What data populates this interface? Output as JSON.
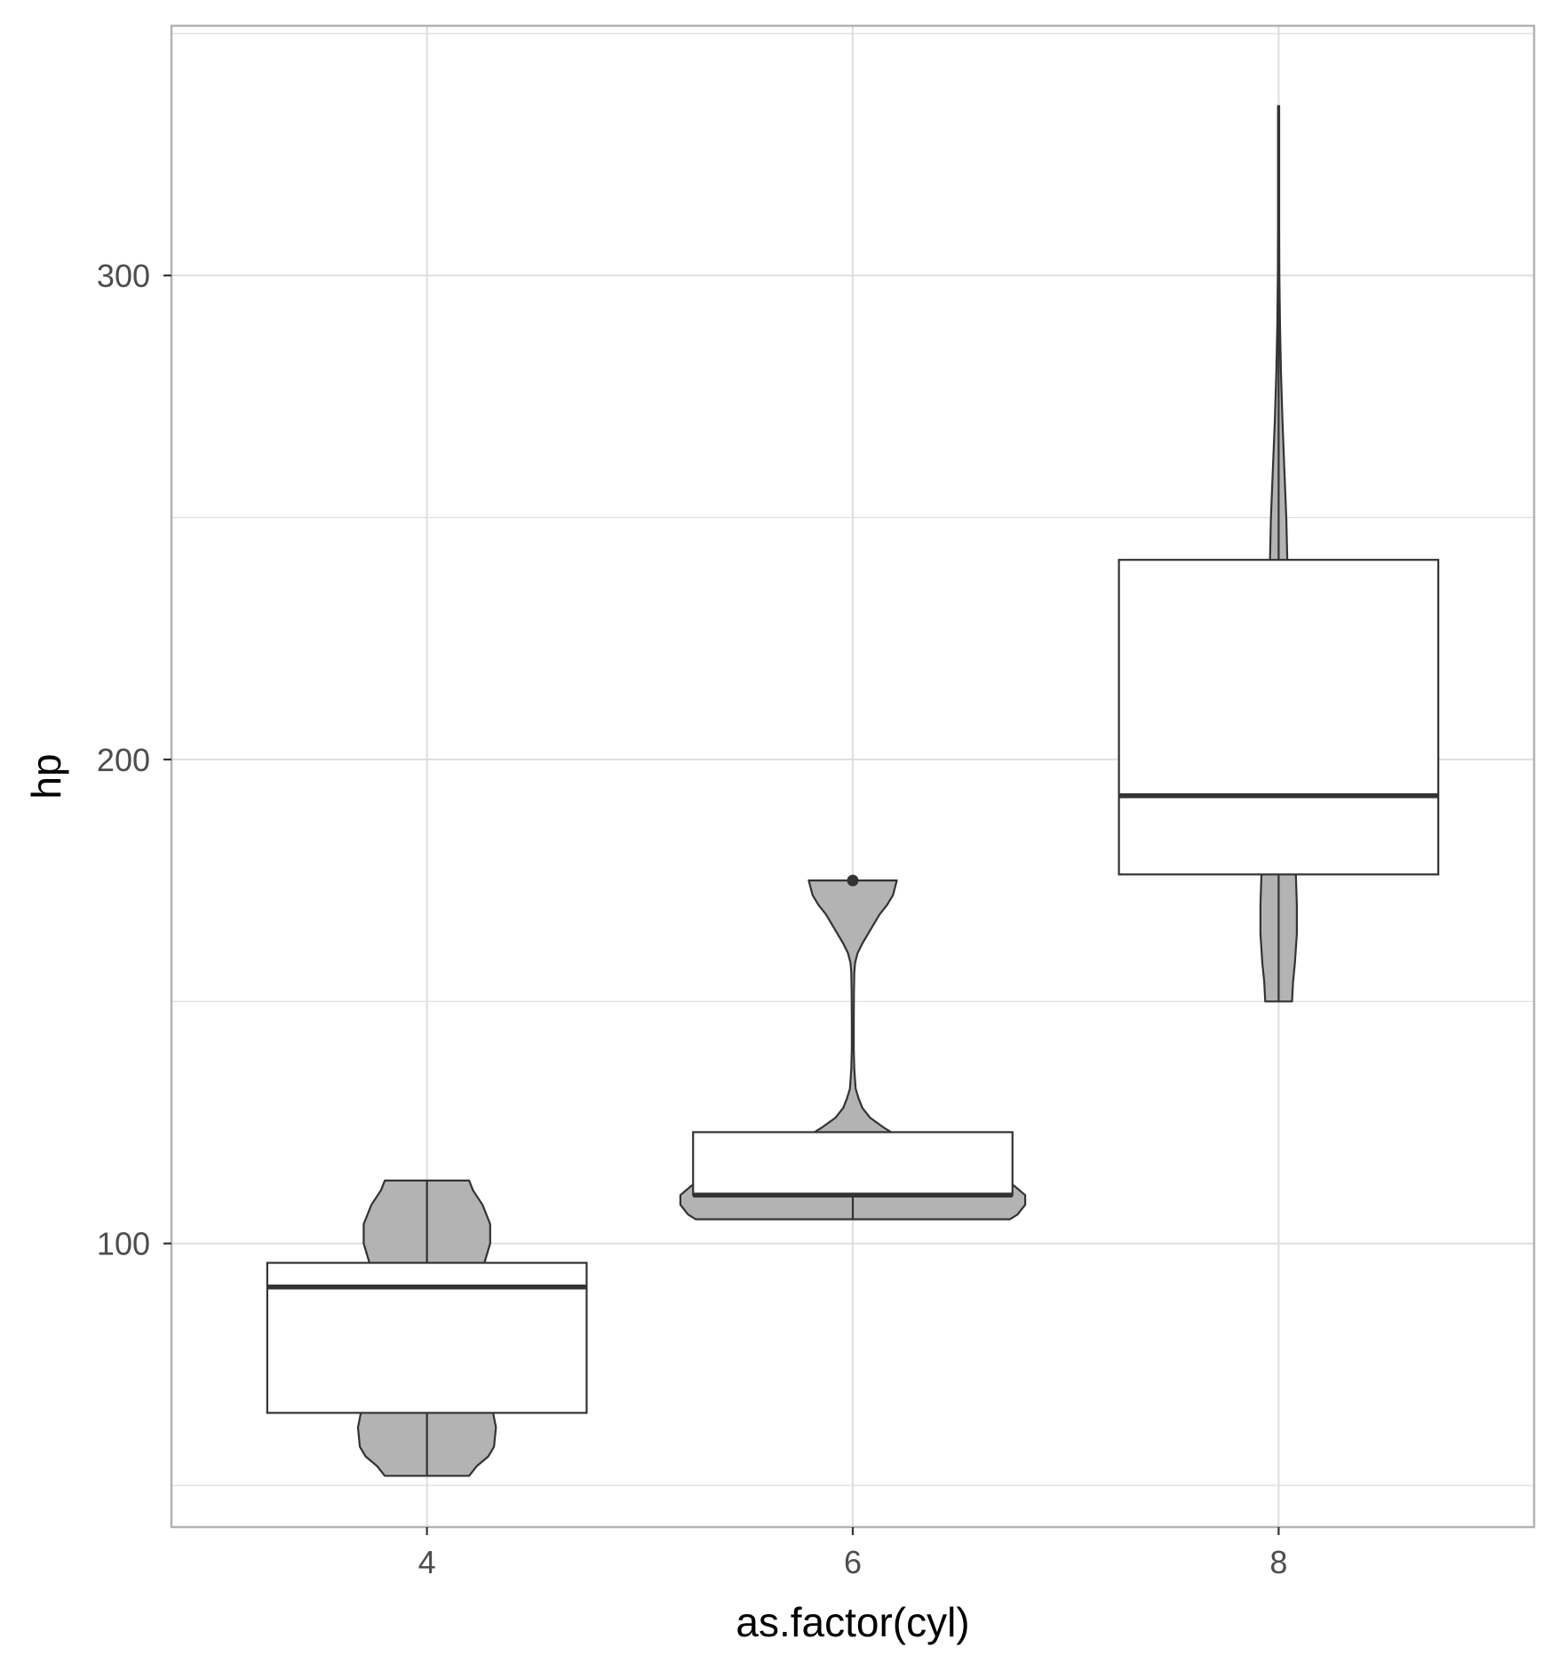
{
  "chart_data": {
    "type": "violin-boxplot",
    "xlabel": "as.factor(cyl)",
    "ylabel": "hp",
    "categories": [
      "4",
      "6",
      "8"
    ],
    "ylim": [
      41.4,
      351.6
    ],
    "y_ticks": [
      100,
      200,
      300
    ],
    "grid": true,
    "colors": {
      "violin_fill": "#b3b3b3",
      "box_fill": "#ffffff",
      "outline": "#333333",
      "panel_border": "#b3b3b3",
      "grid": "#dedede"
    },
    "violins": [
      {
        "category": "4",
        "min": 52,
        "max": 113,
        "profile": [
          [
            52,
            0.22
          ],
          [
            54,
            0.26
          ],
          [
            56,
            0.32
          ],
          [
            58,
            0.35
          ],
          [
            62,
            0.36
          ],
          [
            66,
            0.34
          ],
          [
            72,
            0.3
          ],
          [
            78,
            0.27
          ],
          [
            84,
            0.25
          ],
          [
            88,
            0.24
          ],
          [
            92,
            0.25
          ],
          [
            96,
            0.3
          ],
          [
            100,
            0.33
          ],
          [
            104,
            0.33
          ],
          [
            108,
            0.29
          ],
          [
            111,
            0.24
          ],
          [
            113,
            0.22
          ]
        ]
      },
      {
        "category": "6",
        "min": 105,
        "max": 175,
        "profile": [
          [
            105,
            0.82
          ],
          [
            106,
            0.86
          ],
          [
            108,
            0.9
          ],
          [
            110,
            0.9
          ],
          [
            112,
            0.84
          ],
          [
            114,
            0.7
          ],
          [
            116,
            0.56
          ],
          [
            118,
            0.43
          ],
          [
            120,
            0.32
          ],
          [
            122,
            0.24
          ],
          [
            124,
            0.16
          ],
          [
            126,
            0.09
          ],
          [
            128,
            0.05
          ],
          [
            130,
            0.03
          ],
          [
            132,
            0.015
          ],
          [
            136,
            0.008
          ],
          [
            140,
            0.005
          ],
          [
            146,
            0.005
          ],
          [
            152,
            0.006
          ],
          [
            156,
            0.008
          ],
          [
            158,
            0.012
          ],
          [
            160,
            0.025
          ],
          [
            162,
            0.05
          ],
          [
            164,
            0.08
          ],
          [
            166,
            0.11
          ],
          [
            168,
            0.14
          ],
          [
            170,
            0.18
          ],
          [
            172,
            0.21
          ],
          [
            175,
            0.23
          ]
        ]
      },
      {
        "category": "8",
        "min": 150,
        "max": 335,
        "profile": [
          [
            150,
            0.07
          ],
          [
            154,
            0.075
          ],
          [
            158,
            0.085
          ],
          [
            164,
            0.095
          ],
          [
            170,
            0.095
          ],
          [
            176,
            0.09
          ],
          [
            182,
            0.08
          ],
          [
            190,
            0.07
          ],
          [
            200,
            0.065
          ],
          [
            210,
            0.063
          ],
          [
            220,
            0.063
          ],
          [
            226,
            0.06
          ],
          [
            230,
            0.055
          ],
          [
            240,
            0.046
          ],
          [
            250,
            0.04
          ],
          [
            260,
            0.03
          ],
          [
            270,
            0.02
          ],
          [
            280,
            0.012
          ],
          [
            290,
            0.007
          ],
          [
            300,
            0.004
          ],
          [
            310,
            0.003
          ],
          [
            320,
            0.003
          ],
          [
            335,
            0.003
          ]
        ]
      }
    ],
    "boxplots": [
      {
        "category": "4",
        "q1": 65.0,
        "median": 91.0,
        "q3": 96.0,
        "whisker_low": 52,
        "whisker_high": 113,
        "outliers": []
      },
      {
        "category": "6",
        "q1": 110.0,
        "median": 110.0,
        "q3": 123.0,
        "whisker_low": 105,
        "whisker_high": 123,
        "outliers": [
          175
        ]
      },
      {
        "category": "8",
        "q1": 176.25,
        "median": 192.5,
        "q3": 241.25,
        "whisker_low": 150,
        "whisker_high": 335,
        "outliers": []
      }
    ]
  }
}
